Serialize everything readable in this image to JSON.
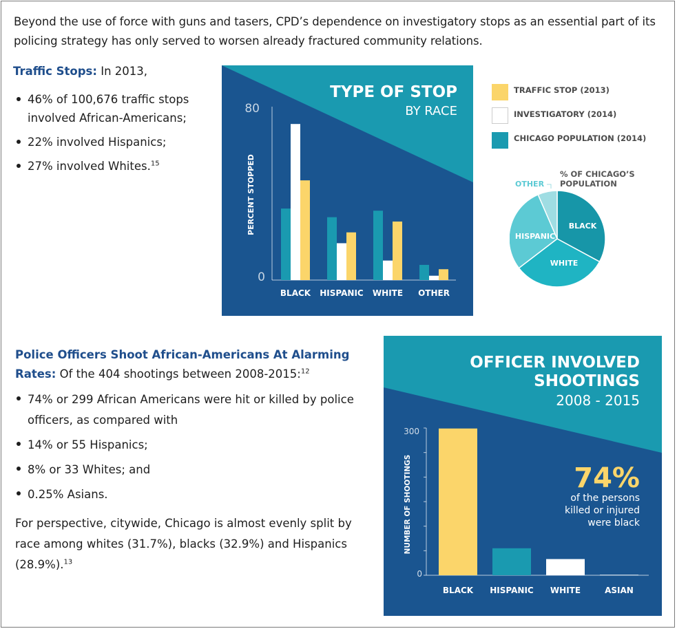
{
  "intro": "Beyond the use of force with guns and tasers, CPD’s dependence on investigatory stops as an essential part of its policing strategy has only served to worsen already fractured community relations.",
  "traffic": {
    "heading": "Traffic Stops:",
    "lead": " In 2013,",
    "bullets": [
      "46% of 100,676 traffic stops involved African-Americans;",
      "22% involved Hispanics;",
      "27% involved Whites."
    ],
    "footnote": "15"
  },
  "shootings": {
    "heading": "Police Officers Shoot African-Americans At Alarming Rates:",
    "lead": " Of the 404 shootings between 2008-2015:",
    "footnote": "12",
    "bullets": [
      "74% or 299 African Americans were hit or killed by police officers, as compared with",
      "14% or 55 Hispanics;",
      "8% or 33 Whites; and",
      "0.25% Asians."
    ],
    "perspective": "For perspective, citywide, Chicago is almost evenly split by race among whites (31.7%), blacks (32.9%) and Hispanics (28.9%).",
    "perspective_footnote": "13"
  },
  "colors": {
    "navy": "#1a5590",
    "teal": "#1a9ab0",
    "yellow": "#fbd56a",
    "white": "#ffffff",
    "pie_black": "#1796a8",
    "pie_white": "#1fb4c3",
    "pie_hispanic": "#5ccad4",
    "pie_other": "#9fdde3"
  },
  "chart_data": [
    {
      "type": "bar",
      "title": "TYPE OF STOP",
      "subtitle": "BY RACE",
      "ylabel": "PERCENT STOPPED",
      "ylim": [
        0,
        80
      ],
      "yticks": [
        "80",
        "0"
      ],
      "categories": [
        "BLACK",
        "HISPANIC",
        "WHITE",
        "OTHER"
      ],
      "series": [
        {
          "name": "CHICAGO POPULATION (2014)",
          "color": "#1a9ab0",
          "values": [
            33,
            29,
            32,
            7
          ]
        },
        {
          "name": "INVESTIGATORY (2014)",
          "color": "#ffffff",
          "values": [
            72,
            17,
            9,
            2
          ]
        },
        {
          "name": "TRAFFIC STOP (2013)",
          "color": "#fbd56a",
          "values": [
            46,
            22,
            27,
            5
          ]
        }
      ],
      "legend_order": [
        "TRAFFIC STOP (2013)",
        "INVESTIGATORY (2014)",
        "CHICAGO POPULATION (2014)"
      ],
      "legend_position": "right"
    },
    {
      "type": "pie",
      "title": "% OF CHICAGO’S POPULATION",
      "slices": [
        {
          "label": "BLACK",
          "value": 32.9,
          "color": "#1796a8"
        },
        {
          "label": "WHITE",
          "value": 31.7,
          "color": "#1fb4c3"
        },
        {
          "label": "HISPANIC",
          "value": 28.9,
          "color": "#5ccad4"
        },
        {
          "label": "OTHER",
          "value": 6.5,
          "color": "#9fdde3"
        }
      ]
    },
    {
      "type": "bar",
      "title": "OFFICER INVOLVED SHOOTINGS",
      "subtitle": "2008 - 2015",
      "ylabel": "NUMBER OF SHOOTINGS",
      "ylim": [
        0,
        300
      ],
      "yticks": [
        "300",
        "0"
      ],
      "categories": [
        "BLACK",
        "HISPANIC",
        "WHITE",
        "ASIAN"
      ],
      "values": [
        299,
        55,
        33,
        1
      ],
      "colors": [
        "#fbd56a",
        "#1a9ab0",
        "#ffffff",
        "#ffffff"
      ],
      "annotation": {
        "value": "74%",
        "text": [
          "of the persons",
          "killed or injured",
          "were black"
        ]
      }
    }
  ]
}
